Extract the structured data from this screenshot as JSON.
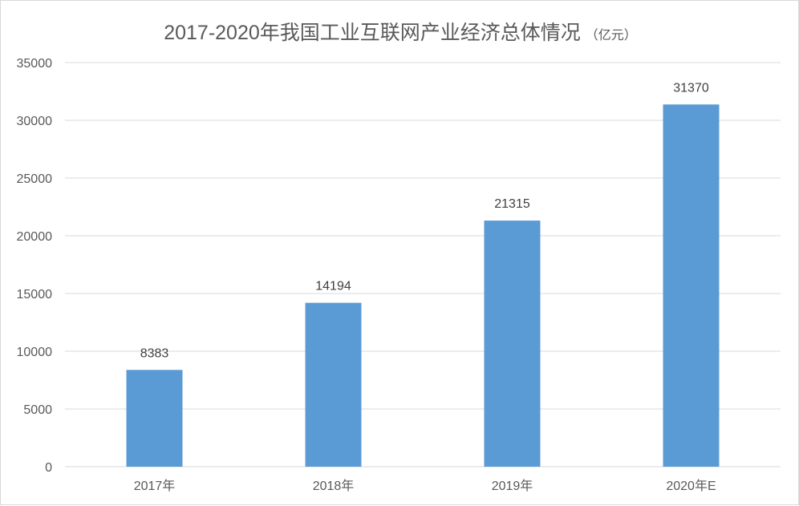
{
  "chart_data": {
    "type": "bar",
    "title": "2017-2020年我国工业互联网产业经济总体情况",
    "title_unit": "（亿元）",
    "categories": [
      "2017年",
      "2018年",
      "2019年",
      "2020年E"
    ],
    "series": [
      {
        "values": [
          8383,
          14194,
          21315,
          31370
        ],
        "color": "#5b9bd5"
      }
    ],
    "data_labels": [
      "8383",
      "14194",
      "21315",
      "31370"
    ],
    "ylim": [
      0,
      35000
    ],
    "yticks": [
      0,
      5000,
      10000,
      15000,
      20000,
      25000,
      30000,
      35000
    ],
    "ytick_labels": [
      "0",
      "5000",
      "10000",
      "15000",
      "20000",
      "25000",
      "30000",
      "35000"
    ],
    "grid": true,
    "legend": "none"
  }
}
